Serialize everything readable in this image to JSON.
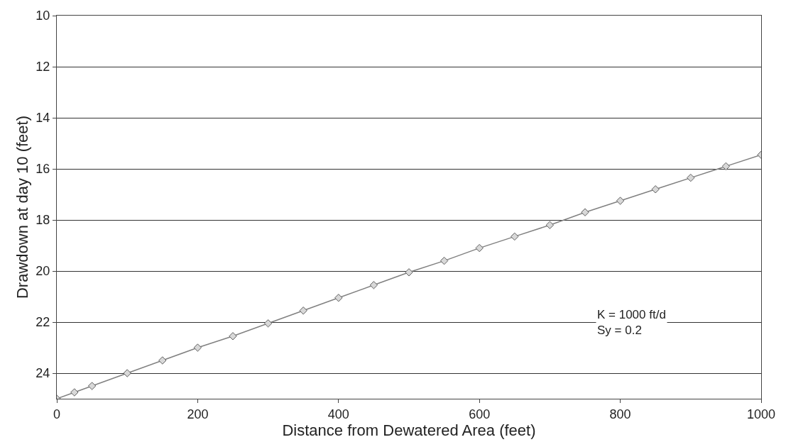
{
  "chart_data": {
    "type": "line",
    "xlabel": "Distance from Dewatered Area (feet)",
    "ylabel": "Drawdown at day 10 (feet)",
    "x": [
      0,
      25,
      50,
      100,
      150,
      200,
      250,
      300,
      350,
      400,
      450,
      500,
      550,
      600,
      650,
      700,
      750,
      800,
      850,
      900,
      950,
      1000
    ],
    "series": [
      {
        "color": "#808080",
        "values": [
          25,
          24.75,
          24.5,
          24,
          23.5,
          23,
          22.55,
          22.05,
          21.55,
          21.05,
          20.55,
          20.05,
          19.6,
          19.1,
          18.65,
          18.2,
          17.7,
          17.25,
          16.8,
          16.35,
          15.9,
          15.45
        ]
      }
    ],
    "xlim": [
      0,
      1000
    ],
    "xticks": [
      0,
      200,
      400,
      600,
      800,
      1000
    ],
    "ylim": [
      25,
      10
    ],
    "yticks": [
      10,
      12,
      14,
      16,
      18,
      20,
      22,
      24
    ],
    "grid": "y",
    "marker": "diamond",
    "line_style": "solid",
    "legend": false,
    "annotations": [
      "K = 1000 ft/d",
      "Sy = 0.2"
    ]
  }
}
